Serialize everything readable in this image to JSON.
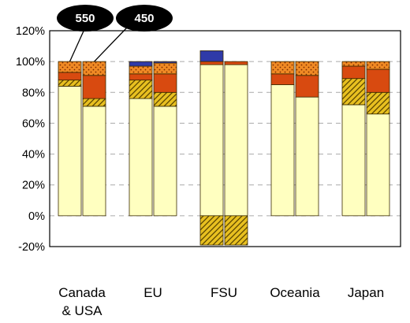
{
  "chart_data": {
    "type": "bar",
    "stacked": true,
    "ylim": [
      -20,
      120
    ],
    "yticks": [
      -20,
      0,
      20,
      40,
      60,
      80,
      100,
      120
    ],
    "ytick_labels": [
      "-20%",
      "0%",
      "20%",
      "40%",
      "60%",
      "80%",
      "100%",
      "120%"
    ],
    "grid": true,
    "legend": "none",
    "categories": [
      "Canada\n& USA",
      "EU",
      "FSU",
      "Oceania",
      "Japan"
    ],
    "scenarios": [
      "550",
      "450"
    ],
    "series_colors": {
      "s1": "#ffffc0",
      "s2": "#e8c020",
      "s3": "#d84a10",
      "s4": "#f08a24",
      "s5": "#2f3aa8"
    },
    "series_patterns": {
      "s1": "none",
      "s2": "hatch",
      "s3": "none",
      "s4": "dots",
      "s5": "none"
    },
    "bars": [
      {
        "category": 0,
        "scenario": "550",
        "segments": {
          "s1": 84,
          "s2": 4,
          "s3": 5,
          "s4": 7,
          "s5": 0
        }
      },
      {
        "category": 0,
        "scenario": "450",
        "segments": {
          "s1": 71,
          "s2": 5,
          "s3": 15,
          "s4": 9,
          "s5": 0
        }
      },
      {
        "category": 1,
        "scenario": "550",
        "segments": {
          "s1": 76,
          "s2": 12,
          "s3": 4,
          "s4": 5,
          "s5": 3
        }
      },
      {
        "category": 1,
        "scenario": "450",
        "segments": {
          "s1": 71,
          "s2": 9,
          "s3": 12,
          "s4": 7,
          "s5": 1
        }
      },
      {
        "category": 2,
        "scenario": "550",
        "segments": {
          "s1": 98,
          "s2": -19,
          "s3": 2,
          "s4": 0,
          "s5": 7
        }
      },
      {
        "category": 2,
        "scenario": "450",
        "segments": {
          "s1": 98,
          "s2": -19,
          "s3": 2,
          "s4": 0,
          "s5": 0
        }
      },
      {
        "category": 3,
        "scenario": "550",
        "segments": {
          "s1": 85,
          "s2": 0,
          "s3": 7,
          "s4": 8,
          "s5": 0
        }
      },
      {
        "category": 3,
        "scenario": "450",
        "segments": {
          "s1": 77,
          "s2": 0,
          "s3": 14,
          "s4": 9,
          "s5": 0
        }
      },
      {
        "category": 4,
        "scenario": "550",
        "segments": {
          "s1": 72,
          "s2": 17,
          "s3": 8,
          "s4": 3,
          "s5": 0
        }
      },
      {
        "category": 4,
        "scenario": "450",
        "segments": {
          "s1": 66,
          "s2": 14,
          "s3": 15,
          "s4": 5,
          "s5": 0
        }
      }
    ],
    "annotations": [
      {
        "text": "550",
        "points_to": {
          "category": 0,
          "scenario": "550"
        }
      },
      {
        "text": "450",
        "points_to": {
          "category": 0,
          "scenario": "450"
        }
      }
    ]
  }
}
